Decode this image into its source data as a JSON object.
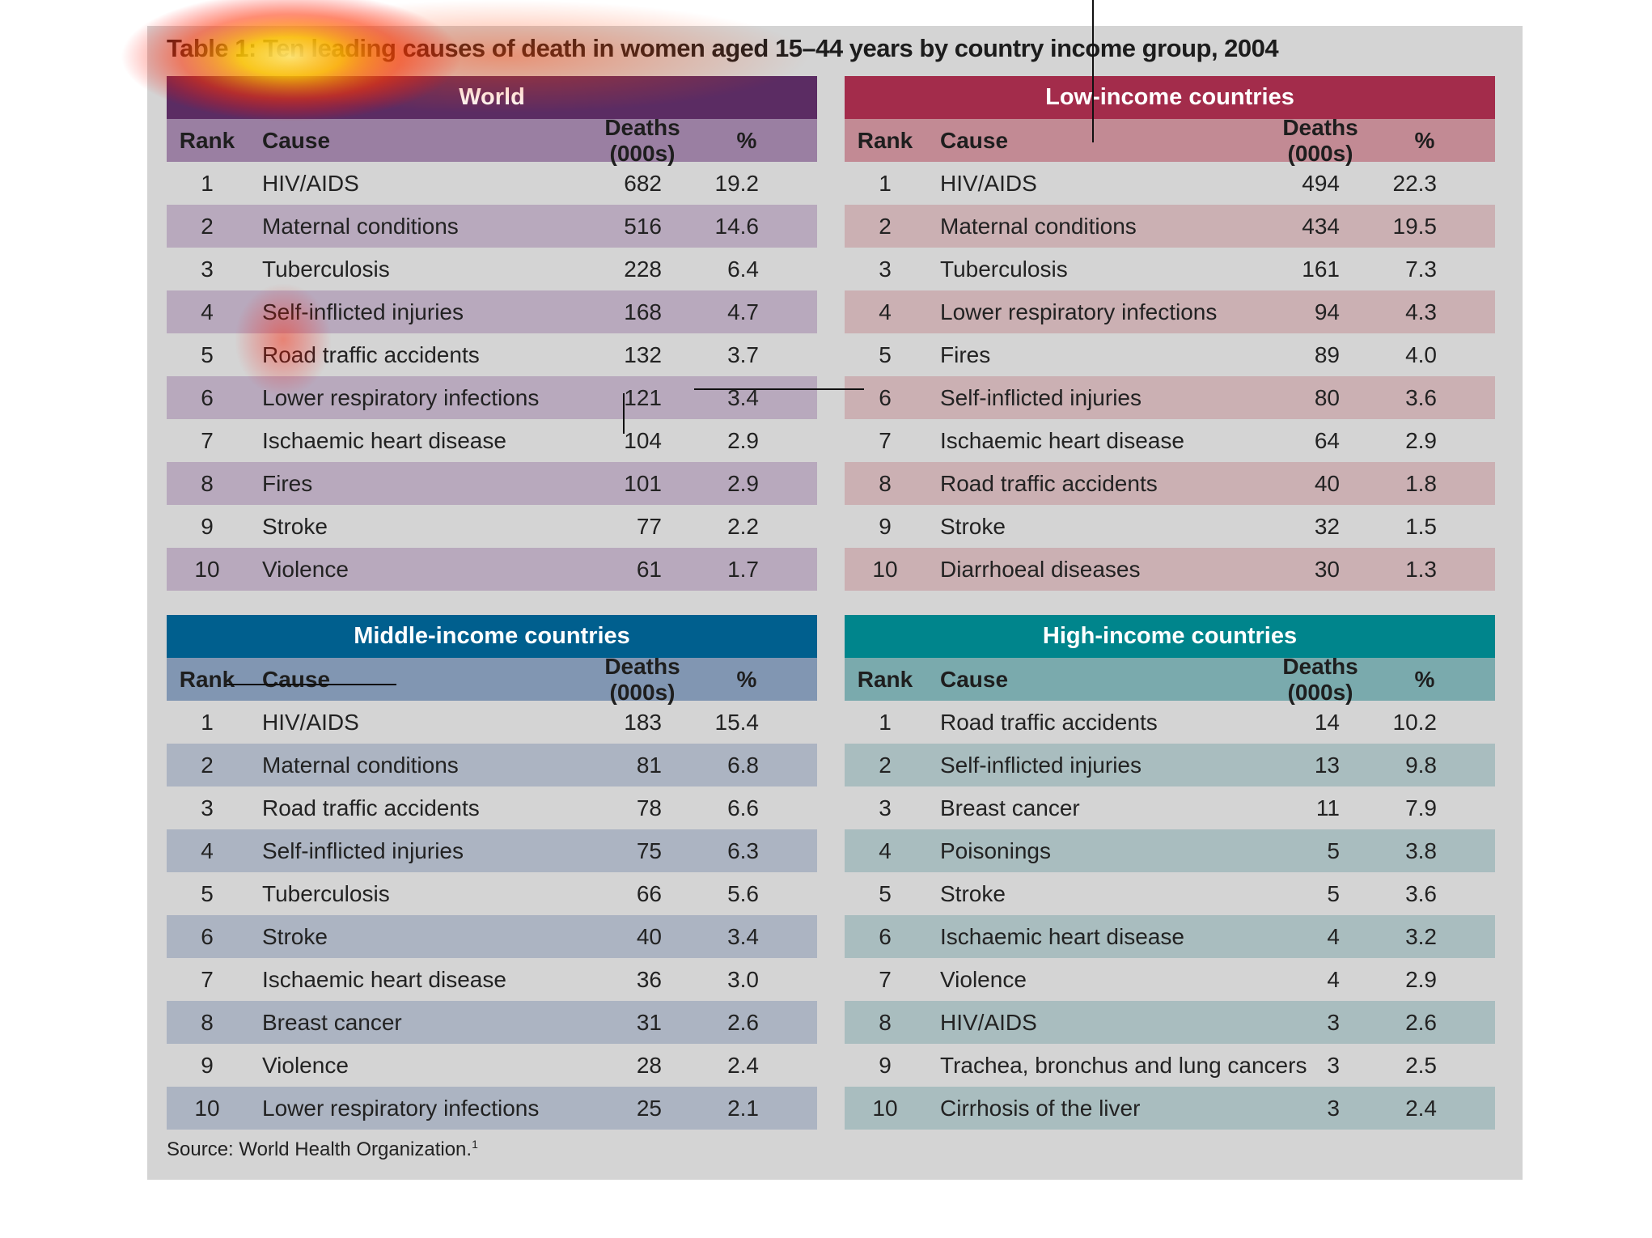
{
  "title": "Table 1: Ten leading causes of death in women aged 15–44 years by country income group, 2004",
  "columns": {
    "rank": "Rank",
    "cause": "Cause",
    "deaths": "Deaths (000s)",
    "pct": "%"
  },
  "tables": {
    "world": {
      "heading": "World",
      "color": "#5b2c63",
      "rows": [
        {
          "rank": "1",
          "cause": "HIV/AIDS",
          "deaths": "682",
          "pct": "19.2"
        },
        {
          "rank": "2",
          "cause": "Maternal conditions",
          "deaths": "516",
          "pct": "14.6"
        },
        {
          "rank": "3",
          "cause": "Tuberculosis",
          "deaths": "228",
          "pct": "6.4"
        },
        {
          "rank": "4",
          "cause": "Self-inflicted injuries",
          "deaths": "168",
          "pct": "4.7"
        },
        {
          "rank": "5",
          "cause": "Road traffic accidents",
          "deaths": "132",
          "pct": "3.7"
        },
        {
          "rank": "6",
          "cause": "Lower respiratory infections",
          "deaths": "121",
          "pct": "3.4"
        },
        {
          "rank": "7",
          "cause": "Ischaemic heart disease",
          "deaths": "104",
          "pct": "2.9"
        },
        {
          "rank": "8",
          "cause": "Fires",
          "deaths": "101",
          "pct": "2.9"
        },
        {
          "rank": "9",
          "cause": "Stroke",
          "deaths": "77",
          "pct": "2.2"
        },
        {
          "rank": "10",
          "cause": "Violence",
          "deaths": "61",
          "pct": "1.7"
        }
      ]
    },
    "low": {
      "heading": "Low-income countries",
      "color": "#a32c4b",
      "rows": [
        {
          "rank": "1",
          "cause": "HIV/AIDS",
          "deaths": "494",
          "pct": "22.3"
        },
        {
          "rank": "2",
          "cause": "Maternal conditions",
          "deaths": "434",
          "pct": "19.5"
        },
        {
          "rank": "3",
          "cause": "Tuberculosis",
          "deaths": "161",
          "pct": "7.3"
        },
        {
          "rank": "4",
          "cause": "Lower respiratory infections",
          "deaths": "94",
          "pct": "4.3"
        },
        {
          "rank": "5",
          "cause": "Fires",
          "deaths": "89",
          "pct": "4.0"
        },
        {
          "rank": "6",
          "cause": "Self-inflicted injuries",
          "deaths": "80",
          "pct": "3.6"
        },
        {
          "rank": "7",
          "cause": "Ischaemic heart disease",
          "deaths": "64",
          "pct": "2.9"
        },
        {
          "rank": "8",
          "cause": "Road traffic accidents",
          "deaths": "40",
          "pct": "1.8"
        },
        {
          "rank": "9",
          "cause": "Stroke",
          "deaths": "32",
          "pct": "1.5"
        },
        {
          "rank": "10",
          "cause": "Diarrhoeal diseases",
          "deaths": "30",
          "pct": "1.3"
        }
      ]
    },
    "middle": {
      "heading": "Middle-income countries",
      "color": "#005f8e",
      "rows": [
        {
          "rank": "1",
          "cause": "HIV/AIDS",
          "deaths": "183",
          "pct": "15.4"
        },
        {
          "rank": "2",
          "cause": "Maternal conditions",
          "deaths": "81",
          "pct": "6.8"
        },
        {
          "rank": "3",
          "cause": "Road traffic accidents",
          "deaths": "78",
          "pct": "6.6"
        },
        {
          "rank": "4",
          "cause": "Self-inflicted injuries",
          "deaths": "75",
          "pct": "6.3"
        },
        {
          "rank": "5",
          "cause": "Tuberculosis",
          "deaths": "66",
          "pct": "5.6"
        },
        {
          "rank": "6",
          "cause": "Stroke",
          "deaths": "40",
          "pct": "3.4"
        },
        {
          "rank": "7",
          "cause": "Ischaemic heart disease",
          "deaths": "36",
          "pct": "3.0"
        },
        {
          "rank": "8",
          "cause": "Breast cancer",
          "deaths": "31",
          "pct": "2.6"
        },
        {
          "rank": "9",
          "cause": "Violence",
          "deaths": "28",
          "pct": "2.4"
        },
        {
          "rank": "10",
          "cause": "Lower respiratory infections",
          "deaths": "25",
          "pct": "2.1"
        }
      ]
    },
    "high": {
      "heading": "High-income countries",
      "color": "#00858c",
      "rows": [
        {
          "rank": "1",
          "cause": "Road traffic accidents",
          "deaths": "14",
          "pct": "10.2"
        },
        {
          "rank": "2",
          "cause": "Self-inflicted injuries",
          "deaths": "13",
          "pct": "9.8"
        },
        {
          "rank": "3",
          "cause": "Breast cancer",
          "deaths": "11",
          "pct": "7.9"
        },
        {
          "rank": "4",
          "cause": "Poisonings",
          "deaths": "5",
          "pct": "3.8"
        },
        {
          "rank": "5",
          "cause": "Stroke",
          "deaths": "5",
          "pct": "3.6"
        },
        {
          "rank": "6",
          "cause": "Ischaemic heart disease",
          "deaths": "4",
          "pct": "3.2"
        },
        {
          "rank": "7",
          "cause": "Violence",
          "deaths": "4",
          "pct": "2.9"
        },
        {
          "rank": "8",
          "cause": "HIV/AIDS",
          "deaths": "3",
          "pct": "2.6"
        },
        {
          "rank": "9",
          "cause": "Trachea, bronchus and lung cancers",
          "deaths": "3",
          "pct": "2.5"
        },
        {
          "rank": "10",
          "cause": "Cirrhosis of the liver",
          "deaths": "3",
          "pct": "2.4"
        }
      ]
    }
  },
  "source": "Source: World Health Organization.",
  "source_ref": "1"
}
